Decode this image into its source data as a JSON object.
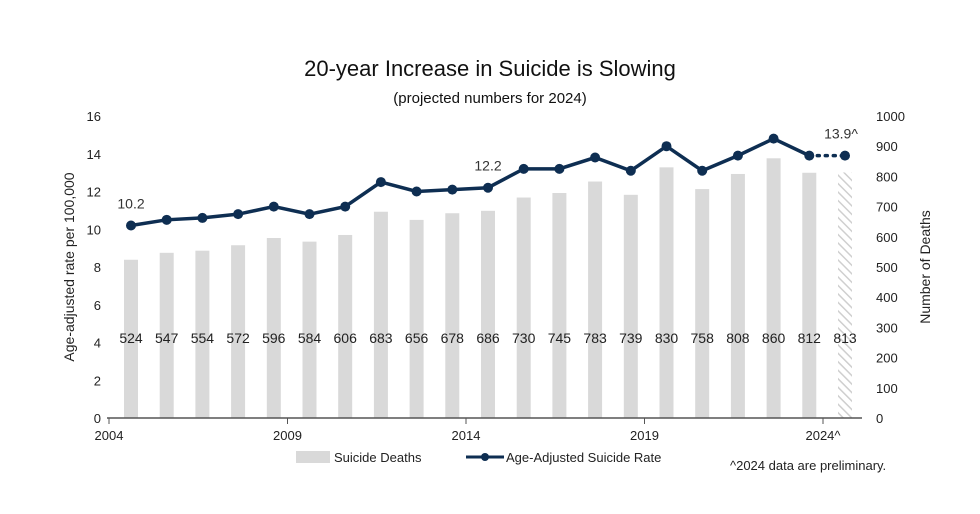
{
  "chart_data": {
    "type": "bar+line",
    "title": "20-year Increase in Suicide is Slowing",
    "subtitle": "(projected numbers for 2024)",
    "categories": [
      "2004",
      "2005",
      "2006",
      "2007",
      "2008",
      "2009",
      "2010",
      "2011",
      "2012",
      "2013",
      "2014",
      "2015",
      "2016",
      "2017",
      "2018",
      "2019",
      "2020",
      "2021",
      "2022",
      "2023",
      "2024"
    ],
    "x_tick_labels": [
      "2004",
      "2009",
      "2014",
      "2019",
      "2024^"
    ],
    "series": [
      {
        "name": "Suicide Deaths",
        "type": "bar",
        "axis": "right",
        "color": "#d9d9d9",
        "values": [
          524,
          547,
          554,
          572,
          596,
          584,
          606,
          683,
          656,
          678,
          686,
          730,
          745,
          783,
          739,
          830,
          758,
          808,
          860,
          812,
          813
        ],
        "projected_last": true
      },
      {
        "name": "Age-Adjusted Suicide Rate",
        "type": "line",
        "axis": "left",
        "color": "#0e2e52",
        "values": [
          10.2,
          10.5,
          10.6,
          10.8,
          11.2,
          10.8,
          11.2,
          12.5,
          12.0,
          12.1,
          12.2,
          13.2,
          13.2,
          13.8,
          13.1,
          14.4,
          13.1,
          13.9,
          14.8,
          13.9,
          13.9
        ],
        "projected_last": true
      }
    ],
    "point_labels": [
      {
        "category": "2004",
        "text": "10.2"
      },
      {
        "category": "2014",
        "text": "12.2"
      },
      {
        "category": "2024",
        "text": "13.9^"
      }
    ],
    "ylabel_left": "Age-adjusted rate per 100,000",
    "ylim_left": [
      0,
      16
    ],
    "yticks_left": [
      "0",
      "2",
      "4",
      "6",
      "8",
      "10",
      "12",
      "14",
      "16"
    ],
    "ylabel_right": "Number of Deaths",
    "ylim_right": [
      0,
      1000
    ],
    "yticks_right": [
      "0",
      "100",
      "200",
      "300",
      "400",
      "500",
      "600",
      "700",
      "800",
      "900",
      "1000"
    ],
    "grid": false,
    "legend_position": "bottom",
    "note": "^2024 data are preliminary."
  }
}
